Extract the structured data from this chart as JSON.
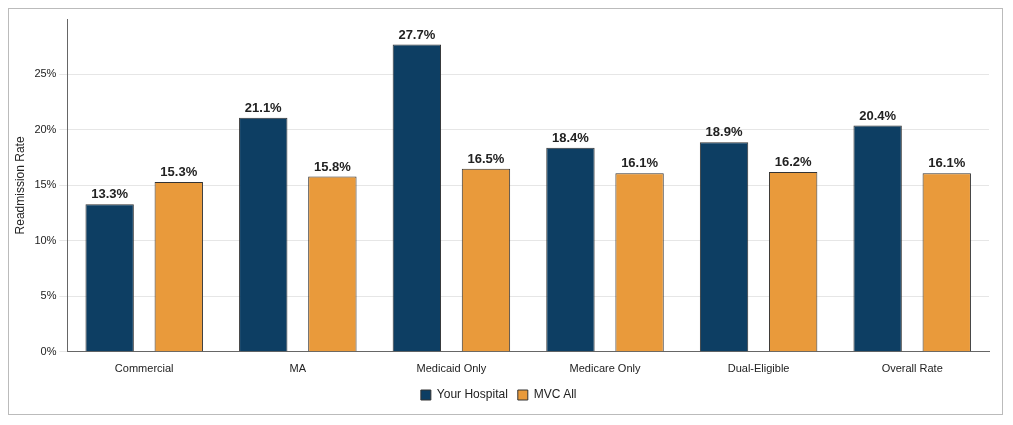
{
  "chart_data": {
    "type": "bar",
    "ylabel": "Readmission Rate",
    "categories": [
      "Commercial",
      "MA",
      "Medicaid Only",
      "Medicare Only",
      "Dual-Eligible",
      "Overall Rate"
    ],
    "series": [
      {
        "name": "Your Hospital",
        "color": "#0d3e63",
        "values": [
          13.3,
          21.1,
          27.7,
          18.4,
          18.9,
          20.4
        ],
        "value_labels": [
          "13.3%",
          "21.1%",
          "27.7%",
          "18.4%",
          "18.9%",
          "20.4%"
        ]
      },
      {
        "name": "MVC All",
        "color": "#e99a3b",
        "values": [
          15.3,
          15.8,
          16.5,
          16.1,
          16.2,
          16.1
        ],
        "value_labels": [
          "15.3%",
          "15.8%",
          "16.5%",
          "16.1%",
          "16.2%",
          "16.1%"
        ]
      }
    ],
    "ylim": [
      0,
      30
    ],
    "yticks": [
      {
        "value": 0,
        "label": "0%"
      },
      {
        "value": 5,
        "label": "5%"
      },
      {
        "value": 10,
        "label": "10%"
      },
      {
        "value": 15,
        "label": "15%"
      },
      {
        "value": 20,
        "label": "20%"
      },
      {
        "value": 25,
        "label": "25%"
      }
    ],
    "grid": "y",
    "legend": "bottom"
  }
}
